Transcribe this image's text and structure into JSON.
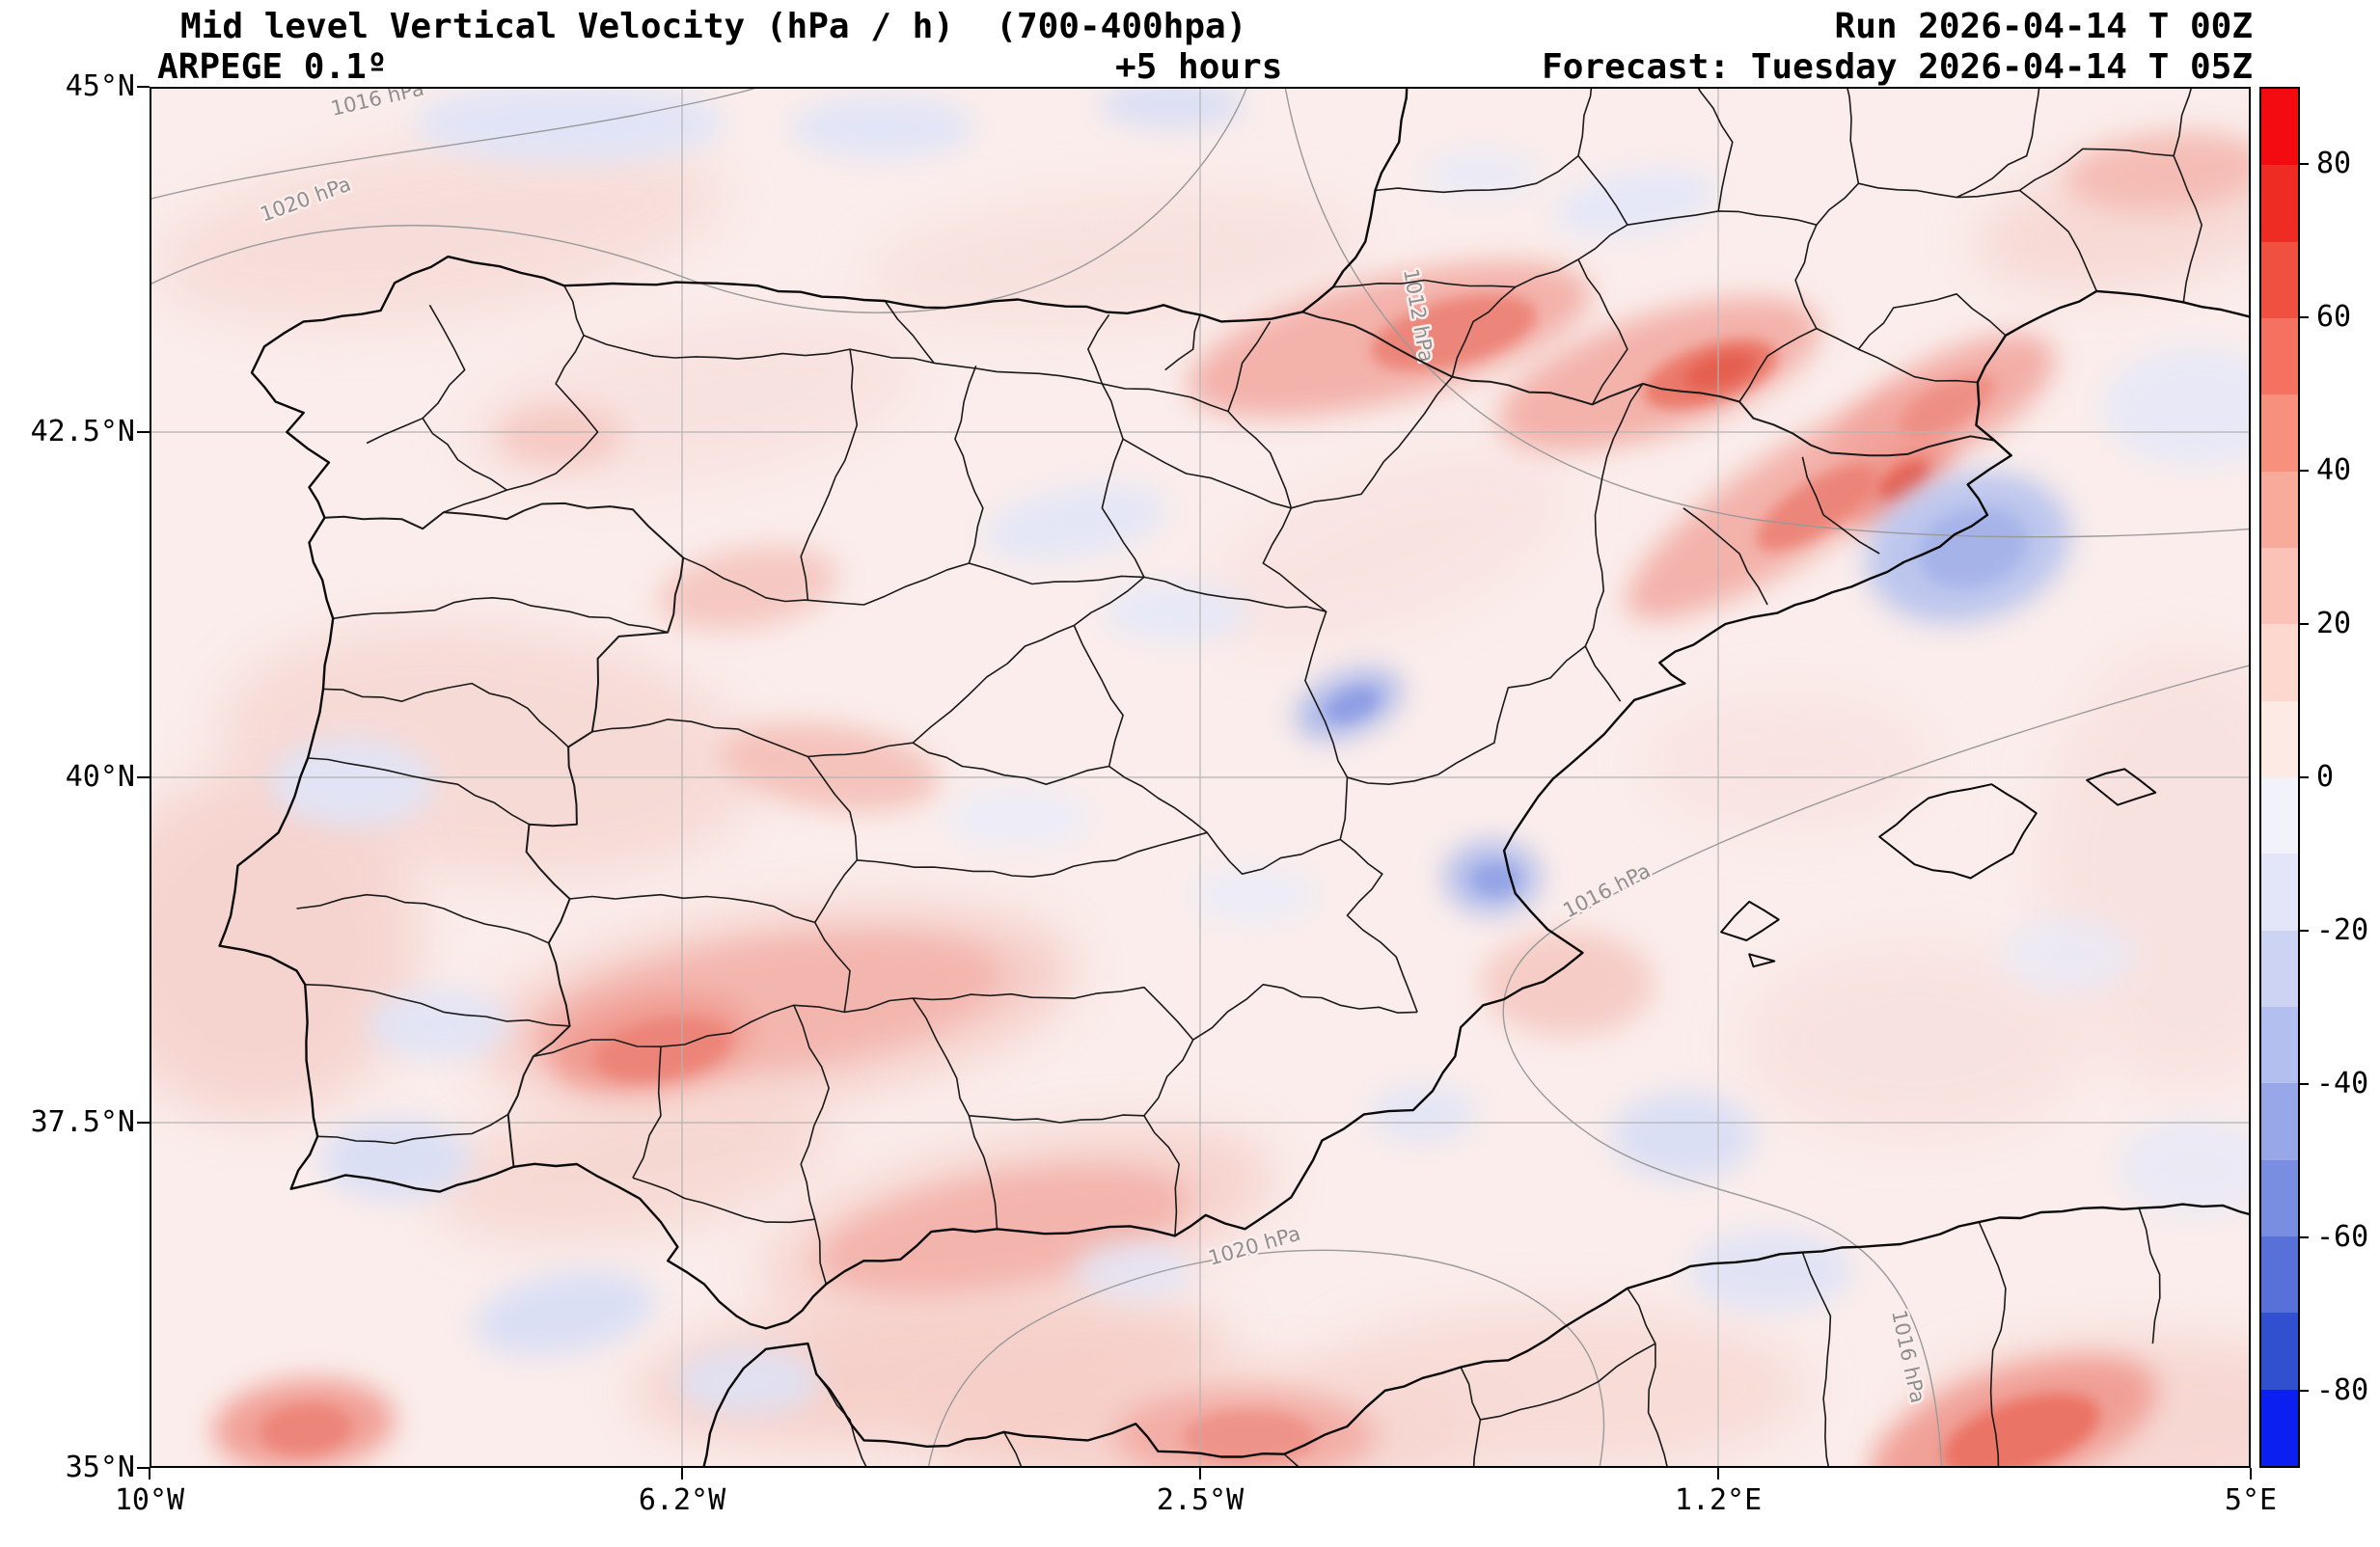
{
  "header": {
    "title": "Mid level Vertical Velocity (hPa / h)  (700-400hpa)",
    "model": "ARPEGE 0.1º",
    "lead": "+5 hours",
    "run": "Run 2026-04-14 T 00Z",
    "forecast": "Forecast: Tuesday 2026-04-14 T 05Z"
  },
  "axes": {
    "lat_ticks": [
      "45°N",
      "42.5°N",
      "40°N",
      "37.5°N",
      "35°N"
    ],
    "lon_ticks": [
      "10°W",
      "6.2°W",
      "2.5°W",
      "1.2°E",
      "5°E"
    ]
  },
  "colorbar": {
    "ticks": [
      "80",
      "60",
      "40",
      "20",
      "0",
      "-20",
      "-40",
      "-60",
      "-80"
    ],
    "vmax": 90,
    "vmin": -90,
    "bands": [
      "#f40b12",
      "#ee2c24",
      "#f0503f",
      "#f4725f",
      "#f7917e",
      "#f9ab9b",
      "#fbc3b7",
      "#fcd8cf",
      "#fdeae5",
      "#f2f2fb",
      "#e2e6f8",
      "#ccd3f3",
      "#b3bfee",
      "#97a7e8",
      "#7a8ee1",
      "#5871d9",
      "#3050d0",
      "#0b1ff0"
    ]
  },
  "map": {
    "base_color": "#faedeb",
    "contour_labels": [
      {
        "text": "1016 hPa"
      },
      {
        "text": "1020 hPa"
      },
      {
        "text": "1012 hPa"
      },
      {
        "text": "1016 hPa"
      },
      {
        "text": "1020 hPa"
      },
      {
        "text": "1016 hPa"
      }
    ]
  },
  "chart_data": {
    "type": "heatmap",
    "title": "Mid level Vertical Velocity (hPa / h) (700-400hpa)",
    "model": "ARPEGE 0.1º",
    "run": "2026-04-14 00Z",
    "forecast": "Tuesday 2026-04-14 05Z (+5 hours)",
    "units": "hPa / h",
    "lon_range": [
      -10,
      5
    ],
    "lat_range": [
      35,
      45
    ],
    "colorbar_range": [
      -90,
      90
    ],
    "colorbar_ticks": [
      80,
      60,
      40,
      20,
      0,
      -20,
      -40,
      -60,
      -80
    ],
    "pressure_contours_hpa": [
      1012,
      1016,
      1020
    ],
    "field_summary": "Mostly weak values between -20 and +30 hPa/h; pink positive bands across NE Spain (Pyrenees-Catalonia), southern Andalucia and coastal Algeria; lavender negative patches over the Mediterranean near 41.7N 3E, inland near 40.5N 1.5W and 39.3N 0.4W"
  }
}
